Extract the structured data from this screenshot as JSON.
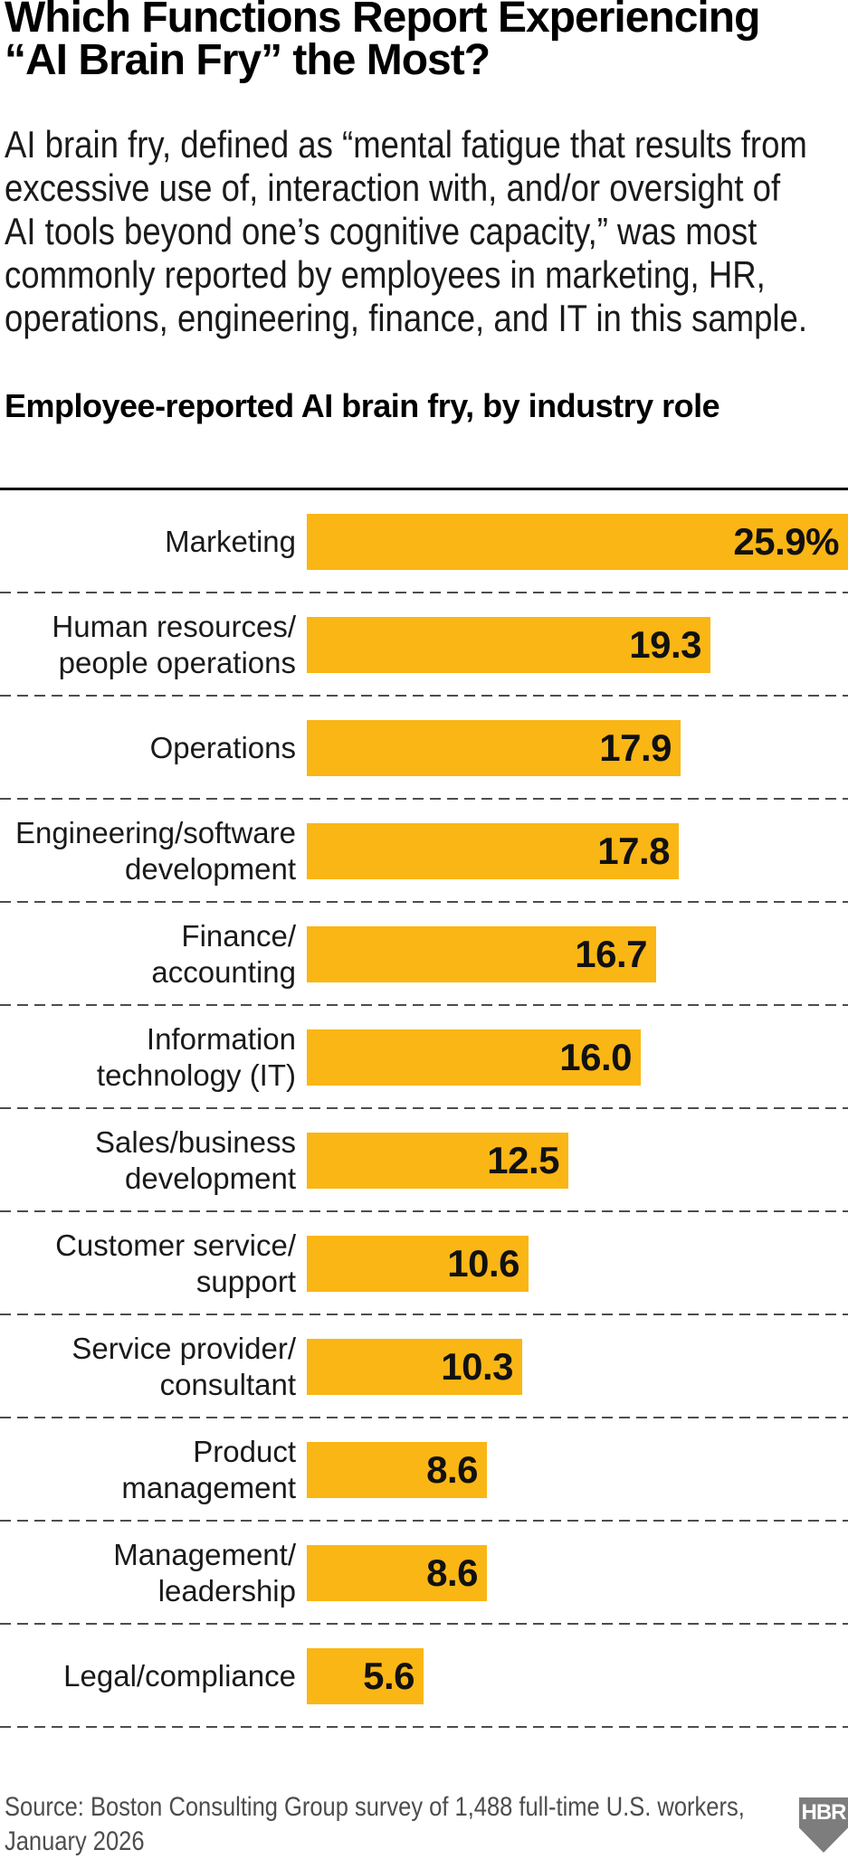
{
  "title": {
    "lines": [
      "Which Functions Report Experiencing",
      "“AI Brain Fry” the Most?"
    ]
  },
  "intro": {
    "lines": [
      "AI brain fry, defined as “mental fatigue that results from",
      "excessive use of, interaction with, and/or oversight of",
      "AI tools beyond one’s cognitive capacity,” was most",
      "commonly reported by employees in marketing, HR,",
      "operations, engineering, finance, and IT in this sample."
    ]
  },
  "chart_data": {
    "type": "bar",
    "orientation": "horizontal",
    "title": "Employee-reported AI brain fry, by industry role",
    "unit": "%",
    "xlim": [
      0,
      25.9
    ],
    "grid": "dashed-row-separators",
    "legend": false,
    "bar_color": "#FAB614",
    "categories": [
      "Marketing",
      "Human resources/people operations",
      "Operations",
      "Engineering/software development",
      "Finance/accounting",
      "Information technology (IT)",
      "Sales/business development",
      "Customer service/support",
      "Service provider/consultant",
      "Product management",
      "Management/leadership",
      "Legal/compliance"
    ],
    "values": [
      25.9,
      19.3,
      17.9,
      17.8,
      16.7,
      16.0,
      12.5,
      10.6,
      10.3,
      8.6,
      8.6,
      5.6
    ],
    "rows": [
      {
        "label_lines": [
          "Marketing"
        ],
        "value": 25.9,
        "value_label": "25.9%"
      },
      {
        "label_lines": [
          "Human resources/",
          "people operations"
        ],
        "value": 19.3,
        "value_label": "19.3"
      },
      {
        "label_lines": [
          "Operations"
        ],
        "value": 17.9,
        "value_label": "17.9"
      },
      {
        "label_lines": [
          "Engineering/software",
          "development"
        ],
        "value": 17.8,
        "value_label": "17.8"
      },
      {
        "label_lines": [
          "Finance/",
          "accounting"
        ],
        "value": 16.7,
        "value_label": "16.7"
      },
      {
        "label_lines": [
          "Information",
          "technology (IT)"
        ],
        "value": 16.0,
        "value_label": "16.0"
      },
      {
        "label_lines": [
          "Sales/business",
          "development"
        ],
        "value": 12.5,
        "value_label": "12.5"
      },
      {
        "label_lines": [
          "Customer service/",
          "support"
        ],
        "value": 10.6,
        "value_label": "10.6"
      },
      {
        "label_lines": [
          "Service provider/",
          "consultant"
        ],
        "value": 10.3,
        "value_label": "10.3"
      },
      {
        "label_lines": [
          "Product",
          "management"
        ],
        "value": 8.6,
        "value_label": "8.6"
      },
      {
        "label_lines": [
          "Management/",
          "leadership"
        ],
        "value": 8.6,
        "value_label": "8.6"
      },
      {
        "label_lines": [
          "Legal/compliance"
        ],
        "value": 5.6,
        "value_label": "5.6"
      }
    ]
  },
  "source": {
    "lines": [
      "Source: Boston Consulting Group survey of 1,488 full-time U.S. workers,",
      "January 2026"
    ]
  },
  "logo": {
    "label": "HBR",
    "color": "#7d7d7d"
  },
  "colors": {
    "bar": "#FAB614",
    "text": "#1a1a1a",
    "rule": "#000000",
    "dash": "#4d4d4d",
    "source_text": "#4d4d4d",
    "logo_gray": "#7d7d7d"
  }
}
